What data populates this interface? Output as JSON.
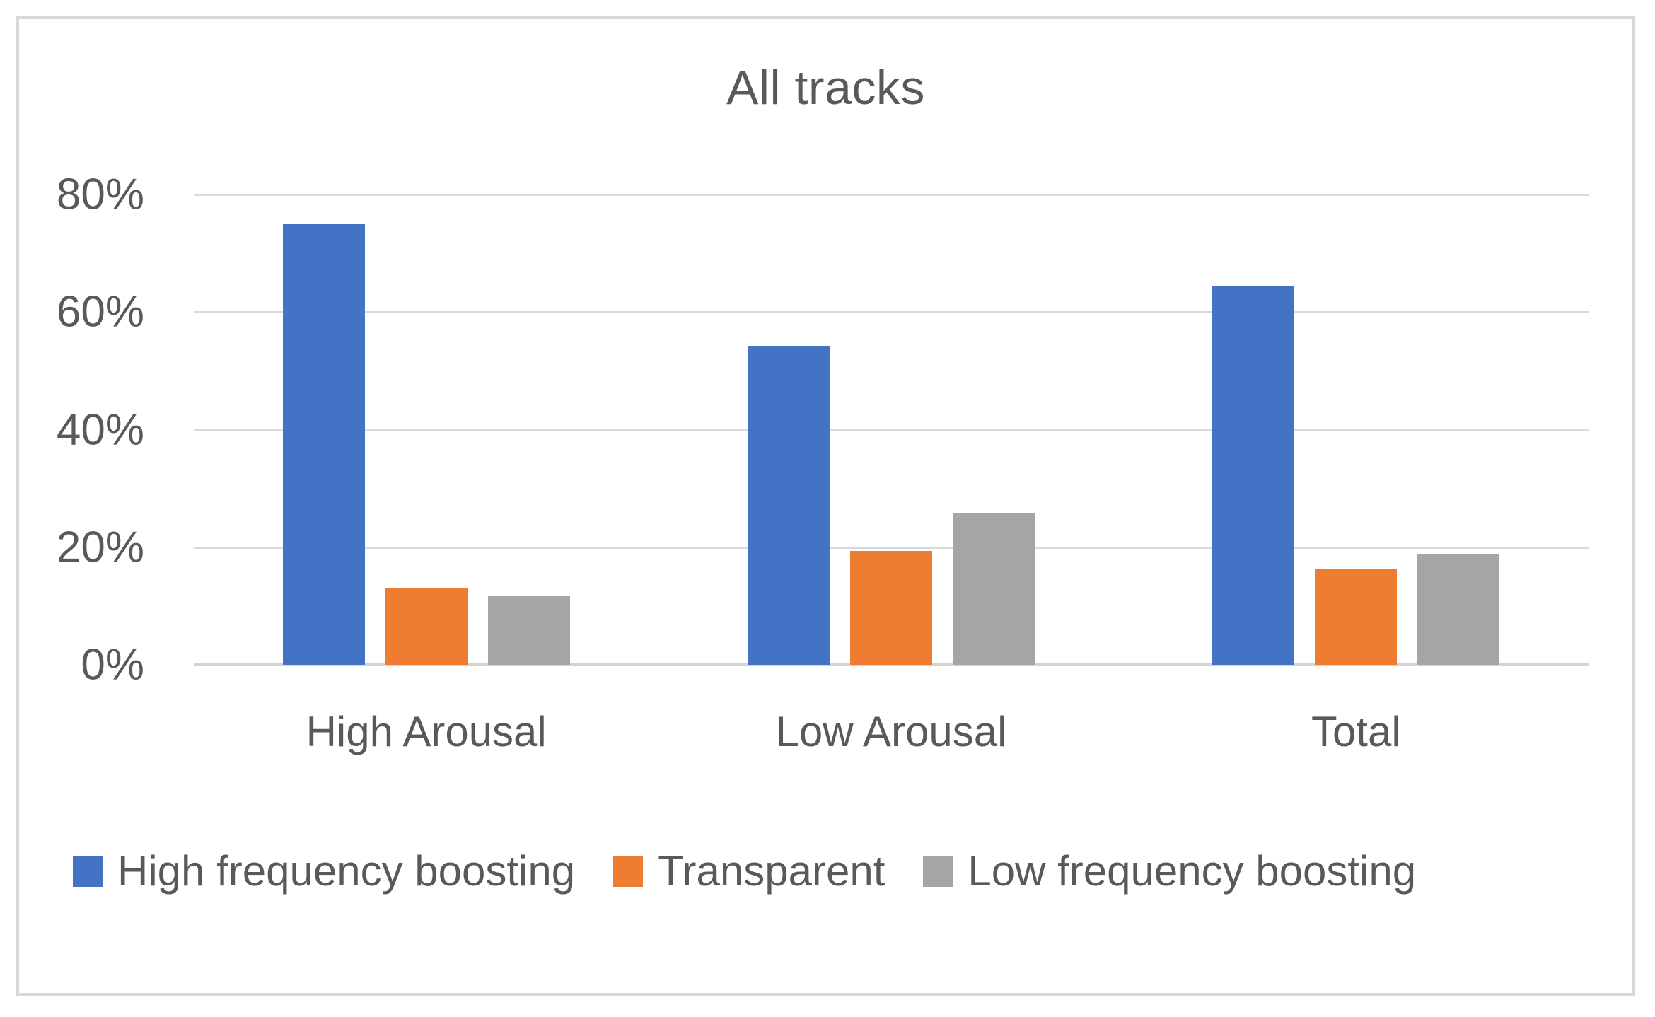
{
  "title": "All tracks",
  "colors": {
    "series_blue": "#4472C4",
    "series_orange": "#ED7D31",
    "series_gray": "#A5A5A5",
    "text": "#595959",
    "gridline": "#D9D9D9",
    "frame_border": "#D8D8D8"
  },
  "chart_data": {
    "type": "bar",
    "title": "All tracks",
    "xlabel": "",
    "ylabel": "",
    "categories": [
      "High Arousal",
      "Low Arousal",
      "Total"
    ],
    "series": [
      {
        "name": "High frequency boosting",
        "color": "#4472C4",
        "values": [
          75,
          54.3,
          64.4
        ]
      },
      {
        "name": "Transparent",
        "color": "#ED7D31",
        "values": [
          13,
          19.4,
          16.2
        ]
      },
      {
        "name": "Low frequency boosting",
        "color": "#A5A5A5",
        "values": [
          11.7,
          25.9,
          18.9
        ]
      }
    ],
    "ylim": [
      0,
      80
    ],
    "y_ticks": [
      {
        "label": "80%",
        "value": 80
      },
      {
        "label": "60%",
        "value": 60
      },
      {
        "label": "40%",
        "value": 40
      },
      {
        "label": "20%",
        "value": 20
      },
      {
        "label": "0%",
        "value": 0
      }
    ],
    "grid": true,
    "legend_position": "bottom"
  }
}
